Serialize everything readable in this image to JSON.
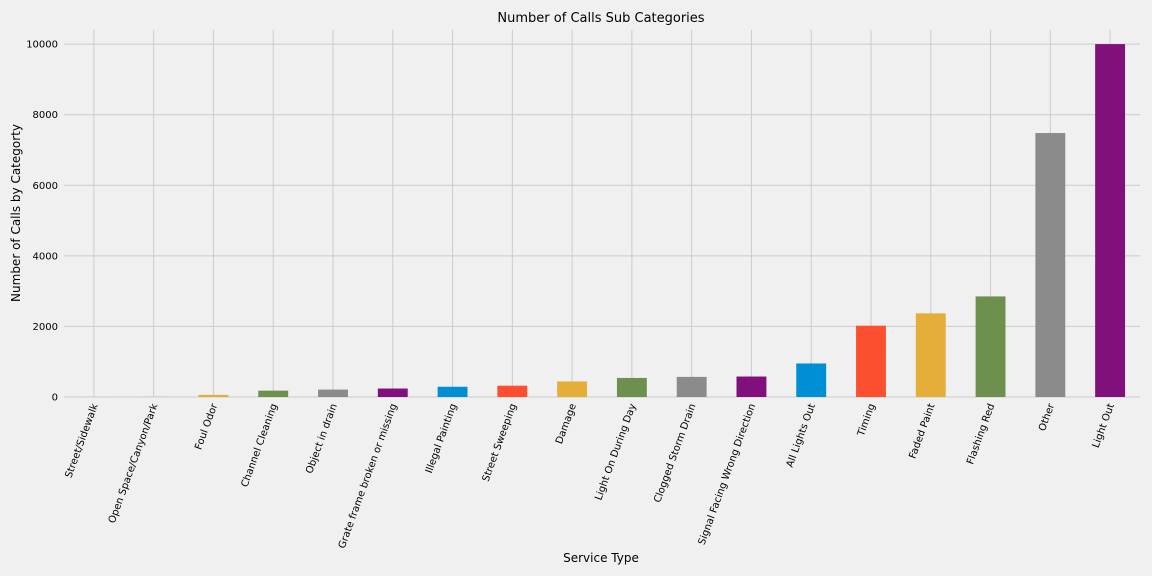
{
  "chart_data": {
    "type": "bar",
    "title": "Number of Calls Sub Categories",
    "xlabel": "Service Type",
    "ylabel": "Number of Calls by Categorty",
    "ylim": [
      0,
      10400
    ],
    "yticks": [
      0,
      2000,
      4000,
      6000,
      8000,
      10000
    ],
    "grid": true,
    "categories": [
      "Street/Sidewalk",
      "Open Space/Canyon/Park",
      "Foul Odor",
      "Channel Cleaning",
      "Object in drain",
      "Grate frame broken or missing",
      "Illegal Painting",
      "Street Sweeping",
      "Damage",
      "Light On During Day",
      "Clogged Storm Drain",
      "Signal Facing Wrong Direction",
      "All Lights Out",
      "Timing",
      "Faded Paint",
      "Flashing Red",
      "Other",
      "Light Out"
    ],
    "values": [
      1,
      2,
      60,
      180,
      210,
      240,
      290,
      320,
      440,
      540,
      570,
      580,
      950,
      2020,
      2370,
      2850,
      7480,
      10000
    ],
    "colors": [
      "#008fd5",
      "#fc4f30",
      "#e5ae38",
      "#6d904f",
      "#8b8b8b",
      "#810f7c"
    ]
  }
}
